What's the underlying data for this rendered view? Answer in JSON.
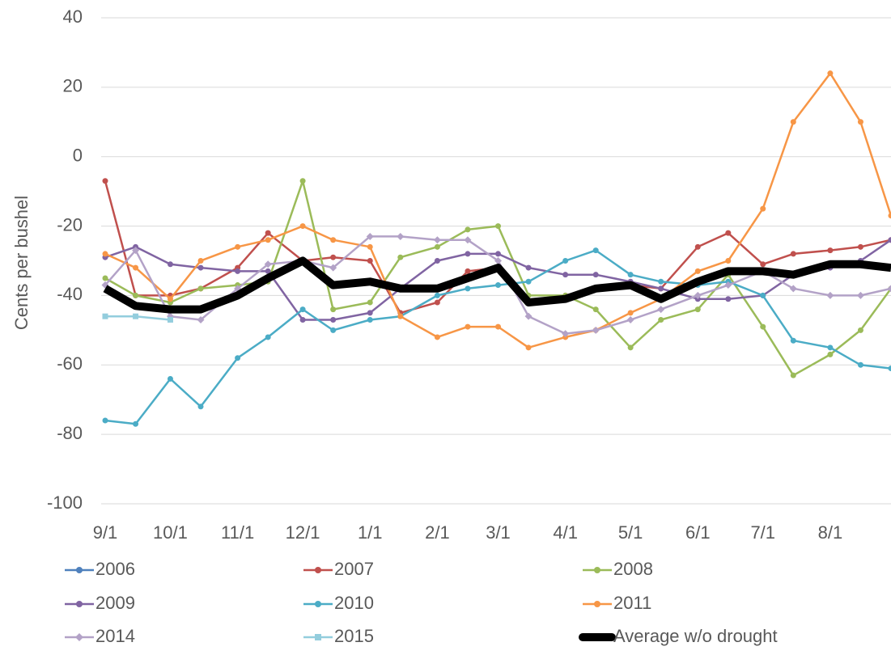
{
  "chart_data": {
    "type": "line",
    "ylabel": "Cents per bushel",
    "x": [
      "9/1",
      "9/15",
      "10/1",
      "10/15",
      "11/1",
      "11/15",
      "12/1",
      "12/15",
      "1/1",
      "1/15",
      "2/1",
      "2/15",
      "3/1",
      "3/15",
      "4/1",
      "4/15",
      "5/1",
      "5/15",
      "6/1",
      "6/15",
      "7/1",
      "7/15",
      "8/1",
      "8/15",
      "8/29"
    ],
    "xlim": [
      "9/1",
      "8/29"
    ],
    "xticks": [
      "9/1",
      "10/1",
      "11/1",
      "12/1",
      "1/1",
      "2/1",
      "3/1",
      "4/1",
      "5/1",
      "6/1",
      "7/1",
      "8/1"
    ],
    "ylim": [
      -100,
      40
    ],
    "yticks": [
      -100,
      -80,
      -60,
      -40,
      -20,
      0,
      20,
      40
    ],
    "grid": true,
    "legend": "bottom",
    "series": [
      {
        "name": "2006",
        "color": "#4f81bd",
        "marker": "circle",
        "values": [
          null,
          null,
          null,
          null,
          null,
          null,
          null,
          null,
          null,
          null,
          null,
          null,
          null,
          null,
          null,
          null,
          null,
          null,
          null,
          null,
          null,
          null,
          null,
          null,
          null
        ]
      },
      {
        "name": "2007",
        "color": "#c0504d",
        "marker": "circle",
        "values": [
          -7,
          -40,
          -40,
          -38,
          -32,
          -22,
          -30,
          -29,
          -30,
          -45,
          -42,
          -33,
          -32,
          -42,
          -40,
          -38,
          -37,
          -38,
          -26,
          -22,
          -31,
          -28,
          -27,
          -26,
          -24
        ]
      },
      {
        "name": "2008",
        "color": "#9bbb59",
        "marker": "circle",
        "values": [
          -35,
          -40,
          -42,
          -38,
          -37,
          -36,
          -7,
          -44,
          -42,
          -29,
          -26,
          -21,
          -20,
          -40,
          -40,
          -44,
          -55,
          -47,
          -44,
          -34,
          -49,
          -63,
          -57,
          -50,
          -38
        ]
      },
      {
        "name": "2009",
        "color": "#8064a2",
        "marker": "circle",
        "values": [
          -29,
          -26,
          -31,
          -32,
          -33,
          -33,
          -47,
          -47,
          -45,
          -38,
          -30,
          -28,
          -28,
          -32,
          -34,
          -34,
          -36,
          -38,
          -41,
          -41,
          -40,
          -34,
          -32,
          -30,
          -24
        ]
      },
      {
        "name": "2010",
        "color": "#4bacc6",
        "marker": "circle",
        "values": [
          -76,
          -77,
          -64,
          -72,
          -58,
          -52,
          -44,
          -50,
          -47,
          -46,
          -40,
          -38,
          -37,
          -36,
          -30,
          -27,
          -34,
          -36,
          -37,
          -36,
          -40,
          -53,
          -55,
          -60,
          -61
        ]
      },
      {
        "name": "2011",
        "color": "#f79646",
        "marker": "circle",
        "values": [
          -28,
          -32,
          -41,
          -30,
          -26,
          -24,
          -20,
          -24,
          -26,
          -46,
          -52,
          -49,
          -49,
          -55,
          -52,
          -50,
          -45,
          -41,
          -33,
          -30,
          -15,
          10,
          24,
          10,
          -17
        ]
      },
      {
        "name": "2014",
        "color": "#b3a2c7",
        "marker": "diamond",
        "values": [
          -37,
          -27,
          -46,
          -47,
          -38,
          -31,
          -30,
          -32,
          -23,
          -23,
          -24,
          -24,
          -30,
          -46,
          -51,
          -50,
          -47,
          -44,
          -40,
          -37,
          -33,
          -38,
          -40,
          -40,
          -38
        ]
      },
      {
        "name": "2015",
        "color": "#93cddd",
        "marker": "square",
        "values": [
          -46,
          -46,
          -47,
          null,
          null,
          null,
          null,
          null,
          null,
          null,
          null,
          null,
          null,
          null,
          null,
          null,
          null,
          null,
          null,
          null,
          null,
          null,
          null,
          null,
          null
        ]
      },
      {
        "name": "Average w/o drought",
        "color": "#000000",
        "marker": "none",
        "width": 10,
        "values": [
          -38,
          -43,
          -44,
          -44,
          -40,
          -35,
          -30,
          -37,
          -36,
          -38,
          -38,
          -35,
          -32,
          -42,
          -41,
          -38,
          -37,
          -41,
          -36,
          -33,
          -33,
          -34,
          -31,
          -31,
          -32
        ]
      }
    ]
  }
}
